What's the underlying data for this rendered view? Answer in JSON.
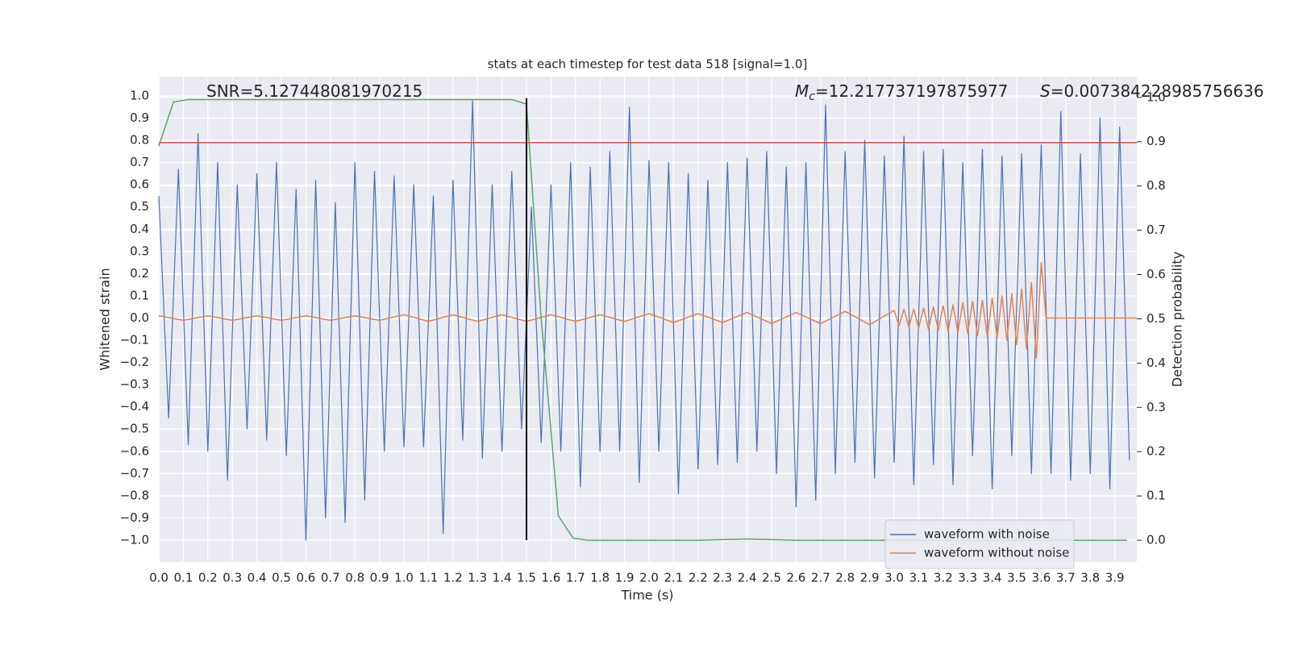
{
  "chart_data": {
    "type": "line",
    "title": "stats at each timestep for test data 518 [signal=1.0]",
    "xlabel": "Time (s)",
    "ylabel": "Whitened strain",
    "y2label": "Detection probability",
    "xlim": [
      0,
      3.99
    ],
    "ylim": [
      -1.098,
      1.087
    ],
    "y2lim": [
      -0.049,
      1.047
    ],
    "xticks": [
      {
        "value": 0,
        "label": "0.0"
      },
      0.1,
      0.2,
      0.3,
      0.4,
      0.5,
      0.6,
      0.7,
      0.8,
      0.9,
      {
        "value": 1,
        "label": "1.0"
      },
      1.1,
      1.2,
      1.3,
      1.4,
      1.5,
      1.6,
      1.7,
      1.8,
      1.9,
      {
        "value": 2,
        "label": "2.0"
      },
      2.1,
      2.2,
      2.3,
      2.4,
      2.5,
      2.6,
      2.7,
      2.8,
      2.9,
      {
        "value": 3,
        "label": "3.0"
      },
      3.1,
      3.2,
      3.3,
      3.4,
      3.5,
      3.6,
      3.7,
      3.8,
      3.9
    ],
    "yticks": [
      {
        "value": -1,
        "label": "−1.0"
      },
      {
        "value": -0.9,
        "label": "−0.9"
      },
      {
        "value": -0.8,
        "label": "−0.8"
      },
      {
        "value": -0.7,
        "label": "−0.7"
      },
      {
        "value": -0.6,
        "label": "−0.6"
      },
      {
        "value": -0.5,
        "label": "−0.5"
      },
      {
        "value": -0.4,
        "label": "−0.4"
      },
      {
        "value": -0.3,
        "label": "−0.3"
      },
      {
        "value": -0.2,
        "label": "−0.2"
      },
      {
        "value": -0.1,
        "label": "−0.1"
      },
      {
        "value": 0,
        "label": "0.0"
      },
      0.1,
      0.2,
      0.3,
      0.4,
      0.5,
      0.6,
      0.7,
      0.8,
      0.9,
      {
        "value": 1,
        "label": "1.0"
      }
    ],
    "y2ticks": [
      {
        "value": 0,
        "label": "0.0"
      },
      0.1,
      0.2,
      0.3,
      0.4,
      0.5,
      0.6,
      0.7,
      0.8,
      0.9,
      {
        "value": 1,
        "label": "1.0"
      }
    ],
    "grid": true,
    "legend": "lower right",
    "annotations": [
      {
        "text": "SNR=5.127448081970215"
      },
      {
        "symbol": "M",
        "subscript": "c",
        "text": "=12.217737197875977"
      },
      {
        "symbol": "S",
        "text": "=0.007384228985756636"
      }
    ],
    "hlines": [
      {
        "y": 0.79,
        "color": "#c44e52"
      }
    ],
    "vlines": [
      {
        "x": 1.5,
        "ymin": -1,
        "ymax": 0.99,
        "color": "#000000"
      }
    ],
    "series": [
      {
        "name": "waveform with noise",
        "color": "#4c72b0",
        "x": [
          0,
          0.04,
          0.08,
          0.12,
          0.16,
          0.2,
          0.24,
          0.28,
          0.32,
          0.36,
          0.4,
          0.44,
          0.48,
          0.52,
          0.56,
          0.6,
          0.64,
          0.68,
          0.72,
          0.76,
          0.8,
          0.84,
          0.88,
          0.92,
          0.96,
          1,
          1.04,
          1.08,
          1.12,
          1.16,
          1.2,
          1.24,
          1.28,
          1.32,
          1.36,
          1.4,
          1.44,
          1.48,
          1.52,
          1.56,
          1.6,
          1.64,
          1.68,
          1.72,
          1.76,
          1.8,
          1.84,
          1.88,
          1.92,
          1.96,
          2,
          2.04,
          2.08,
          2.12,
          2.16,
          2.2,
          2.24,
          2.28,
          2.32,
          2.36,
          2.4,
          2.44,
          2.48,
          2.52,
          2.56,
          2.6,
          2.64,
          2.68,
          2.72,
          2.76,
          2.8,
          2.84,
          2.88,
          2.92,
          2.96,
          3,
          3.04,
          3.08,
          3.12,
          3.16,
          3.2,
          3.24,
          3.28,
          3.32,
          3.36,
          3.4,
          3.44,
          3.48,
          3.52,
          3.56,
          3.6,
          3.64,
          3.68,
          3.72,
          3.76,
          3.8,
          3.84,
          3.88,
          3.92,
          3.96
        ],
        "values": [
          0.55,
          -0.45,
          0.67,
          -0.57,
          0.83,
          -0.6,
          0.7,
          -0.73,
          0.6,
          -0.5,
          0.65,
          -0.55,
          0.7,
          -0.62,
          0.58,
          -1.0,
          0.62,
          -0.9,
          0.52,
          -0.92,
          0.7,
          -0.82,
          0.66,
          -0.6,
          0.64,
          -0.58,
          0.6,
          -0.58,
          0.55,
          -0.97,
          0.62,
          -0.55,
          0.98,
          -0.63,
          0.6,
          -0.6,
          0.66,
          -0.5,
          0.5,
          -0.56,
          0.6,
          -0.6,
          0.7,
          -0.76,
          0.68,
          -0.6,
          0.75,
          -0.6,
          0.95,
          -0.74,
          0.71,
          -0.6,
          0.7,
          -0.79,
          0.65,
          -0.68,
          0.62,
          -0.66,
          0.7,
          -0.65,
          0.72,
          -0.6,
          0.75,
          -0.7,
          0.68,
          -0.85,
          0.7,
          -0.82,
          0.96,
          -0.7,
          0.75,
          -0.65,
          0.8,
          -0.72,
          0.73,
          -0.65,
          0.82,
          -0.75,
          0.75,
          -0.66,
          0.76,
          -0.75,
          0.7,
          -0.62,
          0.76,
          -0.77,
          0.73,
          -0.62,
          0.74,
          -0.7,
          0.78,
          -0.7,
          0.93,
          -0.73,
          0.74,
          -0.7,
          0.9,
          -0.77,
          0.86,
          -0.64
        ]
      },
      {
        "name": "waveform without noise",
        "color": "#dd8452",
        "x": [
          0,
          0.1,
          0.2,
          0.3,
          0.4,
          0.5,
          0.6,
          0.7,
          0.8,
          0.9,
          1,
          1.1,
          1.2,
          1.3,
          1.4,
          1.5,
          1.6,
          1.7,
          1.8,
          1.9,
          2,
          2.1,
          2.2,
          2.3,
          2.4,
          2.5,
          2.6,
          2.7,
          2.8,
          2.9,
          3,
          3.02,
          3.04,
          3.06,
          3.08,
          3.1,
          3.12,
          3.14,
          3.16,
          3.18,
          3.2,
          3.22,
          3.24,
          3.26,
          3.28,
          3.3,
          3.32,
          3.34,
          3.36,
          3.38,
          3.4,
          3.42,
          3.44,
          3.46,
          3.48,
          3.5,
          3.52,
          3.54,
          3.56,
          3.58,
          3.6,
          3.62,
          3.99
        ],
        "values": [
          0.01,
          -0.01,
          0.01,
          -0.01,
          0.01,
          -0.01,
          0.01,
          -0.01,
          0.01,
          -0.01,
          0.015,
          -0.015,
          0.015,
          -0.015,
          0.015,
          -0.015,
          0.015,
          -0.015,
          0.015,
          -0.015,
          0.02,
          -0.02,
          0.02,
          -0.02,
          0.025,
          -0.025,
          0.025,
          -0.025,
          0.03,
          -0.03,
          0.035,
          -0.035,
          0.04,
          -0.04,
          0.04,
          -0.045,
          0.045,
          -0.05,
          0.05,
          -0.055,
          0.055,
          -0.06,
          0.06,
          -0.065,
          0.07,
          -0.07,
          0.075,
          -0.08,
          0.08,
          -0.085,
          0.09,
          -0.09,
          0.1,
          -0.1,
          0.11,
          -0.12,
          0.13,
          -0.14,
          0.16,
          -0.18,
          0.25,
          0,
          0
        ]
      },
      {
        "axis": "y2",
        "color": "#55a868",
        "x": [
          0,
          0.06,
          0.12,
          0.3,
          0.6,
          0.9,
          1.2,
          1.44,
          1.5,
          1.56,
          1.63,
          1.69,
          1.75,
          2,
          2.2,
          2.4,
          2.6,
          2.8,
          3,
          3.2,
          3.4,
          3.6,
          3.8,
          3.95
        ],
        "values": [
          0.89,
          0.99,
          0.995,
          0.995,
          0.995,
          0.995,
          0.995,
          0.995,
          0.985,
          0.5,
          0.055,
          0.005,
          0,
          0,
          0,
          0.003,
          0,
          0,
          0,
          0,
          0,
          0,
          0,
          0
        ]
      }
    ]
  }
}
